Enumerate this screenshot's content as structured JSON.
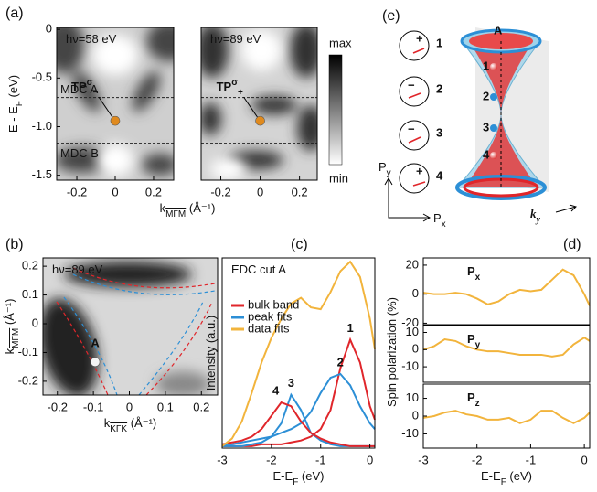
{
  "panel_labels": [
    "(a)",
    "(b)",
    "(c)",
    "(d)",
    "(e)"
  ],
  "colorbar": {
    "max": "max",
    "min": "min"
  },
  "chart_data": [
    {
      "type": "heatmap",
      "title": "hν=58 eV",
      "xlim": [
        -0.305,
        0.305
      ],
      "xticks": [
        -0.2,
        0,
        0.2
      ],
      "ylim": [
        -1.55,
        0.02
      ],
      "yticks": [
        0,
        -0.5,
        {
          "value": -1,
          "label": "-1.0"
        },
        -1.5
      ],
      "ylabel": "E - E",
      "ylabel_sub": "F",
      "ylabel_unit": " (eV)",
      "lines": [
        {
          "label": "MDC A",
          "y": -0.7
        },
        {
          "label": "MDC B",
          "y": -1.17
        }
      ],
      "point": {
        "x": 0,
        "y": -0.94,
        "label": "TP",
        "sup": "σ",
        "sub": "−",
        "color": "#e08a1e"
      }
    },
    {
      "type": "heatmap",
      "title": "hν=89 eV",
      "xlim": [
        -0.3,
        0.29
      ],
      "xticks": [
        -0.2,
        0,
        0.2
      ],
      "ylim": [
        -1.55,
        0.02
      ],
      "xlabel": "k",
      "xlabel_sub": "MΓM",
      "xlabel_unit": " (Å⁻¹)",
      "lines": [
        {
          "y": -0.7
        },
        {
          "y": -1.17
        }
      ],
      "point": {
        "x": 0,
        "y": -0.94,
        "label": "TP",
        "sup": "σ",
        "sub": "+",
        "color": "#e08a1e"
      }
    },
    {
      "type": "heatmap",
      "title": "hν=89 eV",
      "xlim": [
        -0.24,
        0.245
      ],
      "xticks": [
        -0.2,
        -0.1,
        0,
        0.1,
        0.2
      ],
      "ylim": [
        -0.248,
        0.229
      ],
      "yticks": [
        0.2,
        0.1,
        0,
        -0.1,
        -0.2
      ],
      "xlabel": "k",
      "xlabel_sub": "KΓK",
      "xlabel_unit": " (Å⁻¹)",
      "ylabel": "k",
      "ylabel_sub": "MΓM",
      "ylabel_unit": " (Å⁻¹)",
      "point": {
        "x": -0.095,
        "y": -0.133,
        "label": "A",
        "color": "#f4f4f4"
      }
    },
    {
      "type": "line",
      "title": "EDC cut A",
      "x": [
        -3,
        -2.8,
        -2.6,
        -2.4,
        -2.2,
        -2.0,
        -1.8,
        -1.6,
        -1.4,
        -1.2,
        -1.0,
        -0.8,
        -0.6,
        -0.4,
        -0.2,
        0,
        0.1
      ],
      "xlim": [
        -3,
        0.1
      ],
      "xticks": [
        -3,
        -2,
        -1,
        0
      ],
      "ylim": [
        0,
        1
      ],
      "xlabel": "E-E",
      "xlabel_sub": "F",
      "xlabel_unit": " (eV)",
      "ylabel": "Intensity (a.u.)",
      "legend": [
        {
          "name": "bulk band",
          "color": "#e0262b"
        },
        {
          "name": "peak fits",
          "color": "#2c8fd6"
        },
        {
          "name": "data fits",
          "color": "#f2b43c"
        }
      ],
      "series": [
        {
          "label": "1",
          "color": "#e0262b",
          "values": [
            0.01,
            0.01,
            0.01,
            0.01,
            0.02,
            0.02,
            0.02,
            0.03,
            0.04,
            0.06,
            0.1,
            0.2,
            0.42,
            0.57,
            0.45,
            0.22,
            0.15
          ]
        },
        {
          "label": "2",
          "color": "#2c8fd6",
          "values": [
            0.02,
            0.02,
            0.03,
            0.04,
            0.05,
            0.06,
            0.08,
            0.1,
            0.13,
            0.19,
            0.29,
            0.37,
            0.39,
            0.33,
            0.22,
            0.13,
            0.1
          ]
        },
        {
          "label": "3",
          "color": "#2c8fd6",
          "values": [
            0.01,
            0.01,
            0.01,
            0.02,
            0.03,
            0.06,
            0.13,
            0.28,
            0.2,
            0.08,
            0.04,
            0.02,
            0.01,
            0.01,
            0.01,
            0.01,
            0.01
          ]
        },
        {
          "label": "4",
          "color": "#e0262b",
          "values": [
            0.02,
            0.03,
            0.04,
            0.06,
            0.1,
            0.17,
            0.24,
            0.22,
            0.14,
            0.08,
            0.05,
            0.03,
            0.02,
            0.01,
            0.01,
            0.01,
            0.01
          ]
        },
        {
          "color": "#f2b43c",
          "values": [
            0.01,
            0.05,
            0.14,
            0.29,
            0.45,
            0.58,
            0.68,
            0.76,
            0.79,
            0.74,
            0.73,
            0.82,
            0.93,
            0.98,
            0.9,
            0.68,
            0.52
          ]
        }
      ]
    },
    {
      "type": "line",
      "title": "P",
      "title_sub": "x",
      "x": [
        -3,
        -2.8,
        -2.6,
        -2.4,
        -2.2,
        -2.0,
        -1.8,
        -1.6,
        -1.4,
        -1.2,
        -1.0,
        -0.8,
        -0.6,
        -0.4,
        -0.2,
        0,
        0.1
      ],
      "xlim": [
        -3,
        0.1
      ],
      "ylim": [
        -21,
        25
      ],
      "yticks": [
        20,
        0,
        -20
      ],
      "series": [
        {
          "color": "#f2b43c",
          "values": [
            1,
            0,
            0,
            1,
            0,
            -3,
            -7,
            -5,
            0,
            3,
            2,
            3,
            10,
            17,
            13,
            0,
            -8
          ]
        }
      ]
    },
    {
      "type": "line",
      "title": "P",
      "title_sub": "y",
      "x": [
        -3,
        -2.8,
        -2.6,
        -2.4,
        -2.2,
        -2.0,
        -1.8,
        -1.6,
        -1.4,
        -1.2,
        -1.0,
        -0.8,
        -0.6,
        -0.4,
        -0.2,
        0,
        0.1
      ],
      "xlim": [
        -3,
        0.1
      ],
      "ylim": [
        -19,
        14
      ],
      "yticks": [
        10,
        0,
        -10
      ],
      "ylabel": "Spin polarization (%)",
      "series": [
        {
          "color": "#f2b43c",
          "values": [
            0,
            2,
            6,
            5,
            2,
            0,
            -1,
            -1,
            -2,
            -3,
            -3,
            -3,
            -4,
            -3,
            3,
            7,
            5
          ]
        }
      ]
    },
    {
      "type": "line",
      "title": "P",
      "title_sub": "z",
      "x": [
        -3,
        -2.8,
        -2.6,
        -2.4,
        -2.2,
        -2.0,
        -1.8,
        -1.6,
        -1.4,
        -1.2,
        -1.0,
        -0.8,
        -0.6,
        -0.4,
        -0.2,
        0,
        0.1
      ],
      "xlim": [
        -3,
        0.1
      ],
      "xticks": [
        -3,
        -2,
        -1,
        0
      ],
      "ylim": [
        -18,
        18
      ],
      "yticks": [
        10,
        0,
        -10
      ],
      "xlabel": "E-E",
      "xlabel_sub": "F",
      "xlabel_unit": " (eV)",
      "series": [
        {
          "color": "#f2b43c",
          "values": [
            -1,
            0,
            2,
            3,
            1,
            0,
            -2,
            -2,
            -1,
            -4,
            -2,
            3,
            3,
            -1,
            -4,
            -1,
            2
          ]
        }
      ]
    }
  ],
  "diagram": {
    "circles": [
      {
        "sign": "+",
        "label": "1"
      },
      {
        "sign": "−",
        "label": "2"
      },
      {
        "sign": "−",
        "label": "3"
      },
      {
        "sign": "+",
        "label": "4"
      }
    ],
    "cone_label": "A",
    "cone_points": [
      "1",
      "2",
      "3",
      "4"
    ],
    "axis_y": "P",
    "axis_y_sub": "y",
    "axis_x": "P",
    "axis_x_sub": "x",
    "k_label": "k",
    "k_sub": "y"
  }
}
